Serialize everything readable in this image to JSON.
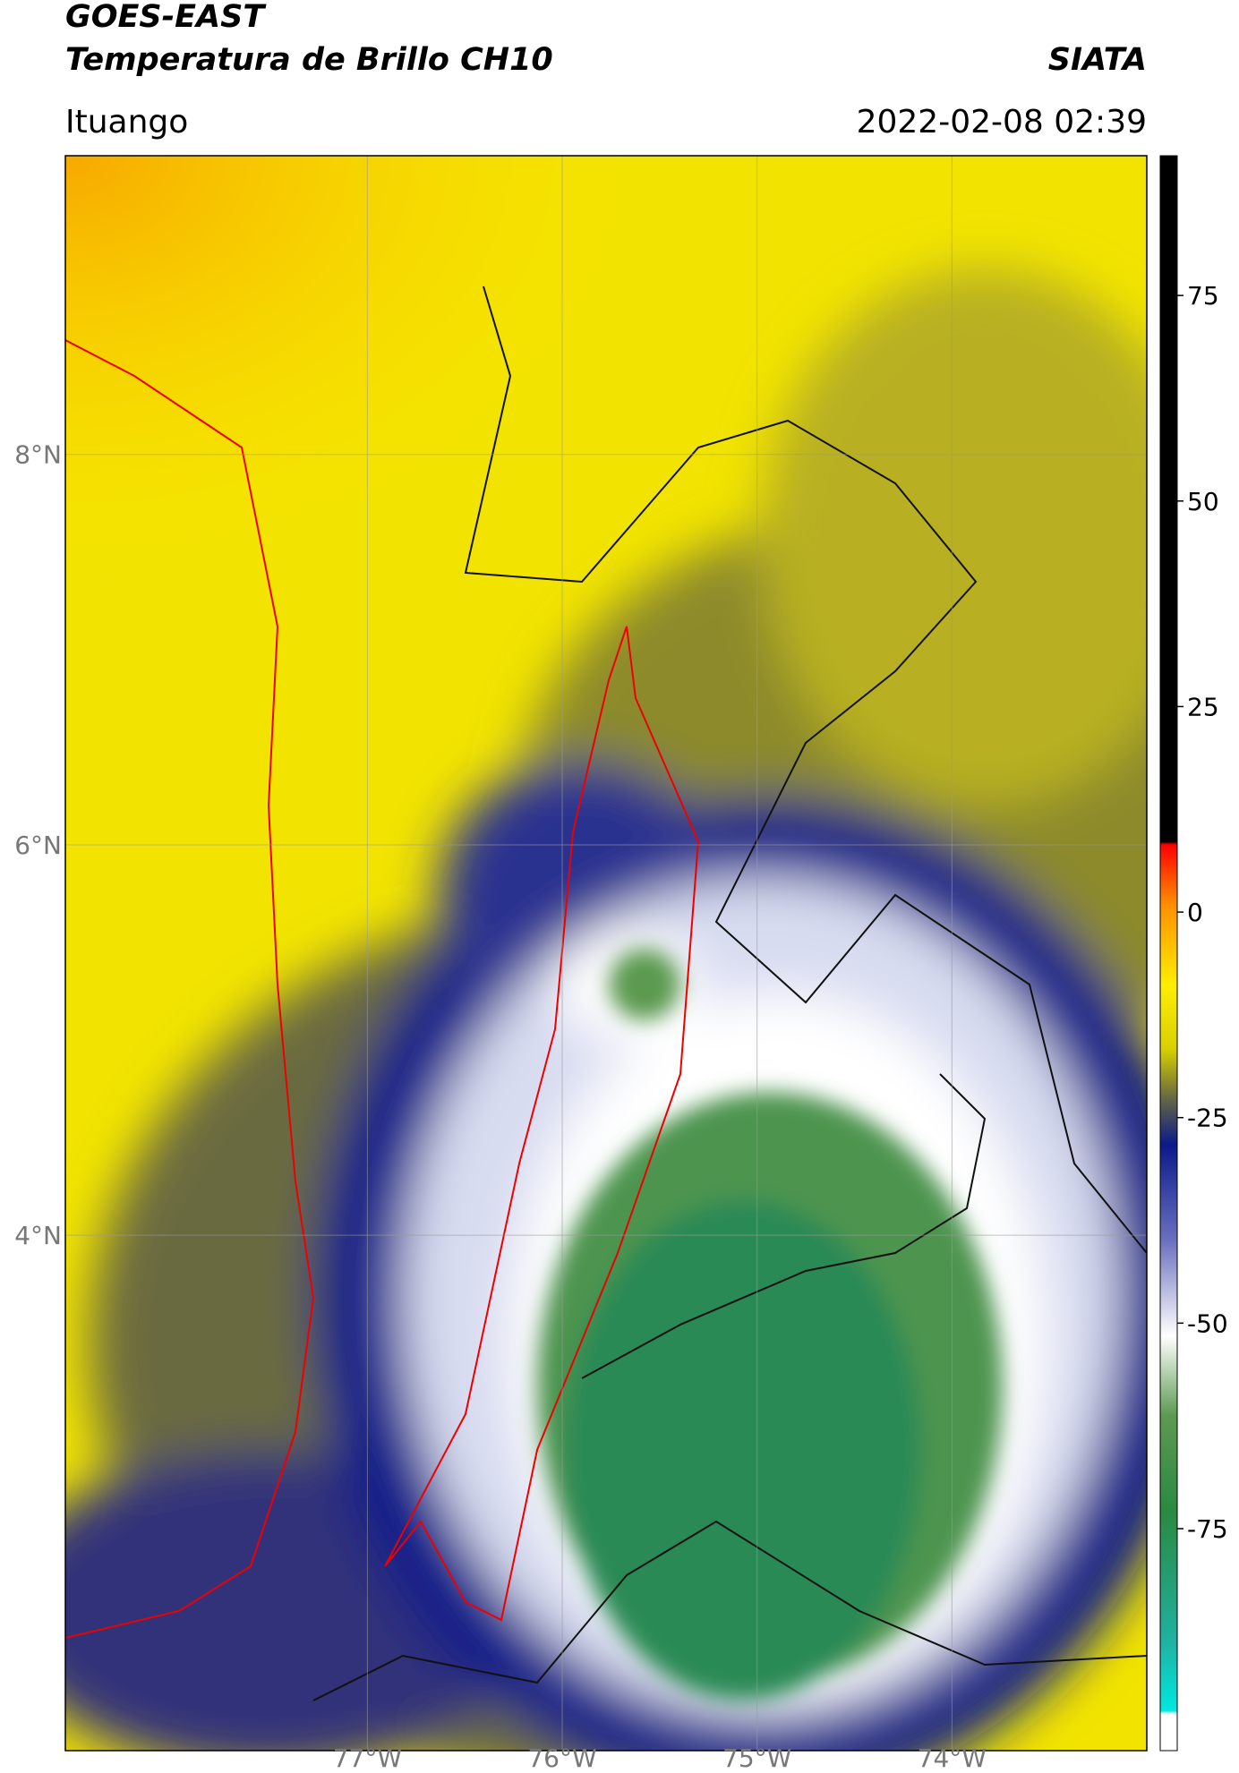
{
  "header": {
    "title": "GOES-EAST",
    "subtitle": "Temperatura de Brillo CH10",
    "source": "SIATA",
    "region": "Ituango",
    "datetime": "2022-02-08 02:39"
  },
  "map": {
    "xlim": [
      -78.55,
      -73.0
    ],
    "ylim": [
      1.36,
      9.53
    ],
    "xticks": [
      {
        "value": -77,
        "label": "77°W"
      },
      {
        "value": -76,
        "label": "76°W"
      },
      {
        "value": -75,
        "label": "75°W"
      },
      {
        "value": -74,
        "label": "74°W"
      }
    ],
    "yticks": [
      {
        "value": 4,
        "label": "4°N"
      },
      {
        "value": 6,
        "label": "6°N"
      },
      {
        "value": 8,
        "label": "8°N"
      }
    ],
    "grid": true
  },
  "colorbar": {
    "lim": [
      -102,
      92
    ],
    "ticks": [
      -75,
      -50,
      -25,
      0,
      25,
      50,
      75
    ]
  }
}
